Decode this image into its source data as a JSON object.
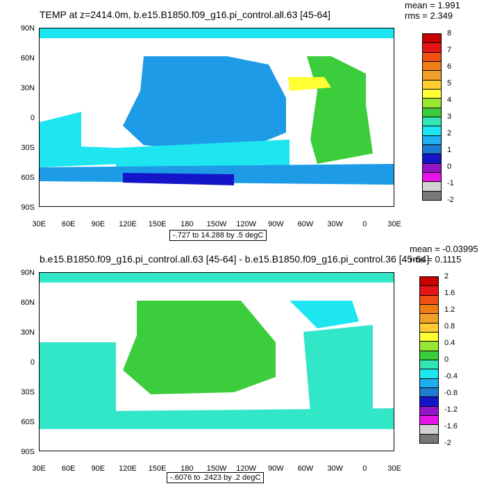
{
  "panels": [
    {
      "title": "TEMP at z=2414.0m, b.e15.B1850.f09_g16.pi_control.all.63 [45-64]",
      "mean_label": "mean = 1.991",
      "rms_label": "rms = 2.349",
      "lat_ticks": [
        "90N",
        "60N",
        "30N",
        "0",
        "30S",
        "60S",
        "90S"
      ],
      "lon_ticks": [
        "30E",
        "60E",
        "90E",
        "120E",
        "150E",
        "180",
        "150W",
        "120W",
        "90W",
        "60W",
        "30W",
        "0",
        "30E"
      ],
      "range_label": "-.727 to 14.288 by .5 degC",
      "colorbar_labels": [
        "8",
        "7",
        "6",
        "5",
        "4",
        "3",
        "2",
        "1",
        "0",
        "-1",
        "-2"
      ]
    },
    {
      "title": "b.e15.B1850.f09_g16.pi_control.all.63 [45-64] - b.e15.B1850.f09_g16.pi_control.36 [45-64]",
      "mean_label": "mean = -0.03995",
      "rms_label": "rms = 0.1115",
      "lat_ticks": [
        "90N",
        "60N",
        "30N",
        "0",
        "30S",
        "60S",
        "90S"
      ],
      "lon_ticks": [
        "30E",
        "60E",
        "90E",
        "120E",
        "150E",
        "180",
        "150W",
        "120W",
        "90W",
        "60W",
        "30W",
        "0",
        "30E"
      ],
      "range_label": "-.6076 to .2423 by .2 degC",
      "colorbar_labels": [
        "2",
        "1.6",
        "1.2",
        "0.8",
        "0.4",
        "0",
        "-0.4",
        "-0.8",
        "-1.2",
        "-1.6",
        "-2"
      ]
    }
  ],
  "colors": {
    "ocean_light_cyan": "#1ee6f0",
    "ocean_blue": "#1e9be6",
    "ocean_teal": "#32e6c8",
    "ocean_green": "#3ccd3c",
    "ocean_yellow": "#ffff32",
    "ocean_darkblue": "#1414c8",
    "land": "#ffffff",
    "colorbar_top": [
      "#c80000",
      "#e61414",
      "#f05014",
      "#f07d14",
      "#f0a028",
      "#ffcd32",
      "#ffff32",
      "#9be632",
      "#3ccd3c",
      "#32e6b4",
      "#1ee6f0",
      "#1eaff0",
      "#1e7dd2",
      "#1414c8",
      "#9614c8",
      "#e614e6",
      "#d2d2d2",
      "#787878"
    ],
    "colorbar_bottom": [
      "#c80000",
      "#e61414",
      "#f05014",
      "#f07d14",
      "#f0a028",
      "#ffcd32",
      "#ffff32",
      "#9be632",
      "#3ccd3c",
      "#32e6b4",
      "#1ee6f0",
      "#1eaff0",
      "#1e7dd2",
      "#1414c8",
      "#9614c8",
      "#e614e6",
      "#d2d2d2",
      "#787878"
    ]
  }
}
